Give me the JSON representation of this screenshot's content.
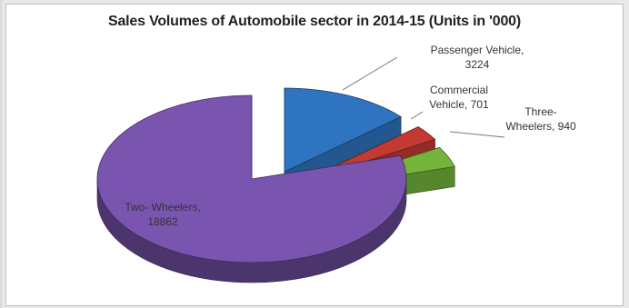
{
  "chart_data": {
    "type": "pie",
    "title": "Sales Volumes of Automobile sector in 2014-15 (Units in '000)",
    "style": "3d-exploded",
    "slices": [
      {
        "name": "Passenger Vehicle",
        "value": 3224,
        "color": "#2f74c0",
        "label_lines": [
          "Passenger Vehicle,",
          "3224"
        ]
      },
      {
        "name": "Commercial Vehicle",
        "value": 701,
        "color": "#c43a33",
        "label_lines": [
          "Commercial",
          "Vehicle, 701"
        ]
      },
      {
        "name": "Three-Wheelers",
        "value": 940,
        "color": "#74b43a",
        "label_lines": [
          "Three-",
          "Wheelers, 940"
        ]
      },
      {
        "name": "Two- Wheelers",
        "value": 18862,
        "color": "#7a55b0",
        "label_lines": [
          "Two- Wheelers,",
          "18862"
        ]
      }
    ]
  }
}
